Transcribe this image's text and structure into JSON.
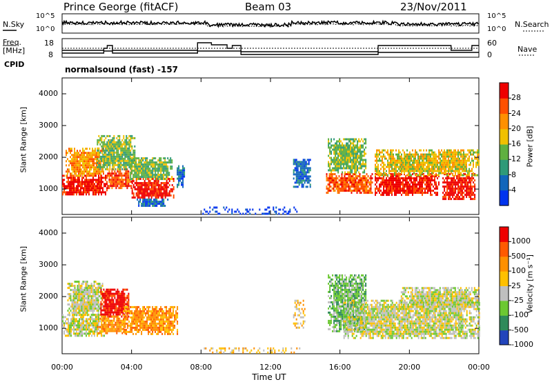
{
  "header": {
    "station": "Prince George (fitACF)",
    "beam": "Beam 03",
    "date": "23/Nov/2011"
  },
  "panels": {
    "nsky": {
      "left_label": "N.Sky",
      "right_label": "N.Search",
      "left_ticks": [
        "10^5",
        "10^0"
      ],
      "right_ticks": [
        "10^5",
        "10^0"
      ]
    },
    "freq": {
      "left_label_1": "Freq.",
      "left_label_2": "[MHz]",
      "right_label": "Nave",
      "left_ticks": [
        "18",
        "8"
      ],
      "right_ticks": [
        "60",
        "0"
      ]
    },
    "cpid": {
      "left_label": "CPID",
      "text": "normalsound (fast) -157"
    }
  },
  "chart_data": [
    {
      "type": "heatmap",
      "name": "power",
      "ylabel": "Slant Range [km]",
      "yticks": [
        "4000",
        "3000",
        "2000",
        "1000"
      ],
      "ylim": [
        200,
        4500
      ],
      "xlim": [
        0,
        24
      ],
      "colorbar": {
        "label": "Power [dB]",
        "ticks": [
          "28",
          "24",
          "20",
          "16",
          "12",
          "8",
          "4"
        ],
        "colors": [
          "#0033ee",
          "#1166bb",
          "#2e9a78",
          "#5fb040",
          "#f0c000",
          "#ff9000",
          "#ff5000",
          "#ee0000"
        ]
      },
      "regions": [
        {
          "t0": 0.0,
          "t1": 2.6,
          "r0": 800,
          "r1": 1450,
          "level": 7
        },
        {
          "t0": 0.2,
          "t1": 2.4,
          "r0": 1400,
          "r1": 2300,
          "level": 5
        },
        {
          "t0": 2.6,
          "t1": 4.0,
          "r0": 1000,
          "r1": 1650,
          "level": 6
        },
        {
          "t0": 2.0,
          "t1": 4.2,
          "r0": 1600,
          "r1": 2700,
          "level": 3
        },
        {
          "t0": 4.0,
          "t1": 6.4,
          "r0": 750,
          "r1": 1350,
          "level": 7
        },
        {
          "t0": 3.9,
          "t1": 6.3,
          "r0": 1300,
          "r1": 2000,
          "level": 3
        },
        {
          "t0": 4.3,
          "t1": 6.1,
          "r0": 480,
          "r1": 700,
          "level": 1
        },
        {
          "t0": 6.6,
          "t1": 7.0,
          "r0": 1050,
          "r1": 1750,
          "level": 1
        },
        {
          "t0": 13.3,
          "t1": 14.3,
          "r0": 1100,
          "r1": 1950,
          "level": 1
        },
        {
          "t0": 15.2,
          "t1": 17.9,
          "r0": 850,
          "r1": 1500,
          "level": 6
        },
        {
          "t0": 15.3,
          "t1": 17.5,
          "r0": 1500,
          "r1": 2600,
          "level": 3
        },
        {
          "t0": 18.0,
          "t1": 21.7,
          "r0": 800,
          "r1": 1500,
          "level": 7
        },
        {
          "t0": 21.9,
          "t1": 23.8,
          "r0": 700,
          "r1": 1500,
          "level": 7
        },
        {
          "t0": 18.0,
          "t1": 24.0,
          "r0": 1450,
          "r1": 2250,
          "level": 4
        },
        {
          "t0": 8.0,
          "t1": 13.5,
          "r0": 250,
          "r1": 450,
          "level": 0
        }
      ]
    },
    {
      "type": "heatmap",
      "name": "velocity",
      "ylabel": "Slant Range [km]",
      "yticks": [
        "4000",
        "3000",
        "2000",
        "1000"
      ],
      "ylim": [
        200,
        4500
      ],
      "xlim": [
        0,
        24
      ],
      "xticks": [
        "00:00",
        "04:00",
        "08:00",
        "12:00",
        "16:00",
        "20:00",
        "00:00"
      ],
      "xlabel": "Time UT",
      "colorbar": {
        "label": "Velocity [m s⁻¹]",
        "ticks": [
          "1000",
          "500",
          "100",
          "25",
          "-25",
          "-100",
          "-500",
          "-1000"
        ],
        "colors": [
          "#2244bb",
          "#2f8a5a",
          "#6cc832",
          "#bfbfbf",
          "#ffc000",
          "#ff9000",
          "#ff5a00",
          "#ee0000"
        ]
      },
      "regions": [
        {
          "t0": 0.0,
          "t1": 2.4,
          "r0": 750,
          "r1": 1450,
          "level": 3
        },
        {
          "t0": 0.3,
          "t1": 2.3,
          "r0": 1450,
          "r1": 2500,
          "level": 3
        },
        {
          "t0": 2.2,
          "t1": 3.8,
          "r0": 1350,
          "r1": 2250,
          "level": 7
        },
        {
          "t0": 2.0,
          "t1": 3.6,
          "r0": 850,
          "r1": 1400,
          "level": 5
        },
        {
          "t0": 3.5,
          "t1": 6.6,
          "r0": 850,
          "r1": 1700,
          "level": 5
        },
        {
          "t0": 13.3,
          "t1": 14.0,
          "r0": 1050,
          "r1": 1900,
          "level": 4
        },
        {
          "t0": 15.3,
          "t1": 17.5,
          "r0": 900,
          "r1": 2700,
          "level": 2
        },
        {
          "t0": 16.2,
          "t1": 24.0,
          "r0": 700,
          "r1": 1900,
          "level": 3
        },
        {
          "t0": 19.5,
          "t1": 24.0,
          "r0": 1700,
          "r1": 2300,
          "level": 3
        },
        {
          "t0": 8.0,
          "t1": 13.8,
          "r0": 250,
          "r1": 400,
          "level": 4
        }
      ]
    }
  ]
}
